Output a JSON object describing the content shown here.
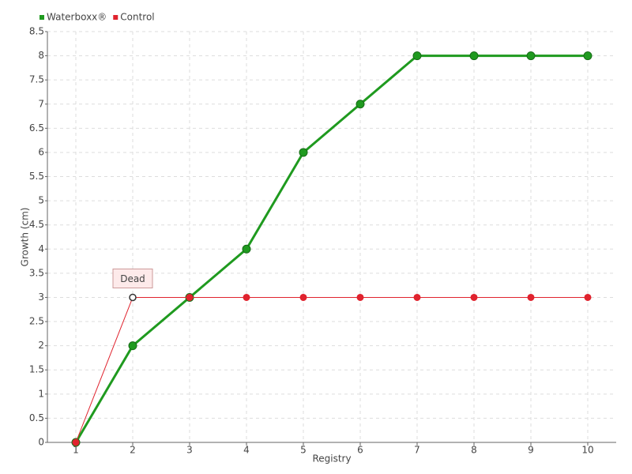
{
  "chart_data": {
    "type": "line",
    "x_label": "Registry",
    "y_label": "Growth (cm)",
    "categories": [
      "1",
      "2",
      "3",
      "4",
      "5",
      "6",
      "7",
      "8",
      "9",
      "10"
    ],
    "series": [
      {
        "name": "Waterboxx®",
        "color": "#1f9a1f",
        "values": [
          0,
          2,
          3,
          4,
          6,
          7,
          8,
          8,
          8,
          8
        ]
      },
      {
        "name": "Control",
        "color": "#e0232e",
        "values": [
          0,
          3,
          3,
          3,
          3,
          3,
          3,
          3,
          3,
          3
        ],
        "point_labels": [
          null,
          "Dead",
          null,
          null,
          null,
          null,
          null,
          null,
          null,
          null
        ]
      }
    ],
    "ylim": [
      0,
      8.5
    ],
    "yticks": [
      0,
      0.5,
      1,
      1.5,
      2,
      2.5,
      3,
      3.5,
      4,
      4.5,
      5,
      5.5,
      6,
      6.5,
      7,
      7.5,
      8,
      8.5
    ],
    "grid": true,
    "legend": "top-left"
  }
}
